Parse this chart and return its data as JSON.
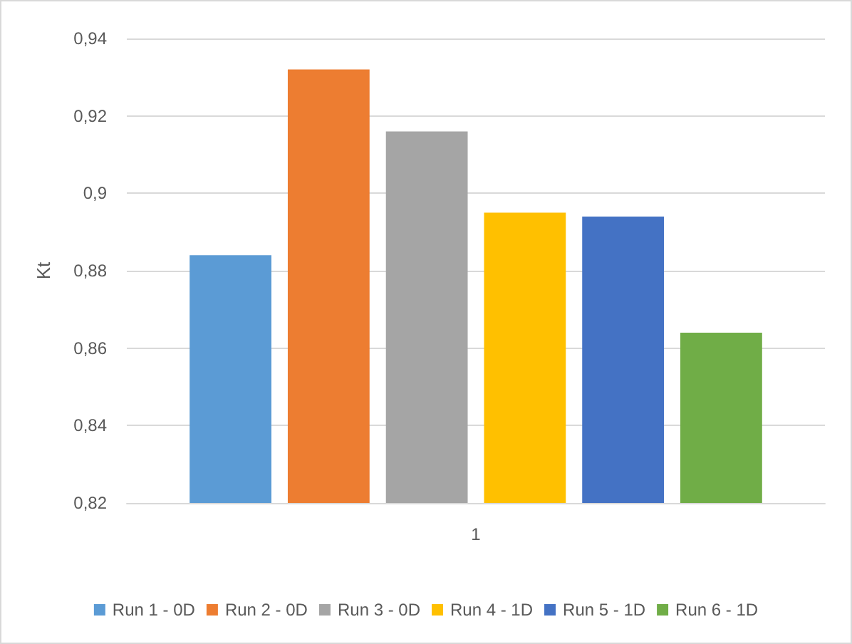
{
  "chart_data": {
    "type": "bar",
    "ylabel": "Kt",
    "categories": [
      "1"
    ],
    "series": [
      {
        "name": "Run 1 - 0D",
        "color": "#5b9bd5",
        "values": [
          0.884
        ]
      },
      {
        "name": "Run 2 - 0D",
        "color": "#ed7d31",
        "values": [
          0.932
        ]
      },
      {
        "name": "Run 3 - 0D",
        "color": "#a5a5a5",
        "values": [
          0.916
        ]
      },
      {
        "name": "Run 4 - 1D",
        "color": "#ffc000",
        "values": [
          0.895
        ]
      },
      {
        "name": "Run 5 - 1D",
        "color": "#4472c4",
        "values": [
          0.894
        ]
      },
      {
        "name": "Run 6 - 1D",
        "color": "#70ad47",
        "values": [
          0.864
        ]
      }
    ],
    "ylim": [
      0.82,
      0.94
    ],
    "yticks": [
      {
        "value": 0.82,
        "label": "0,82"
      },
      {
        "value": 0.84,
        "label": "0,84"
      },
      {
        "value": 0.86,
        "label": "0,86"
      },
      {
        "value": 0.88,
        "label": "0,88"
      },
      {
        "value": 0.9,
        "label": "0,9"
      },
      {
        "value": 0.92,
        "label": "0,92"
      },
      {
        "value": 0.94,
        "label": "0,94"
      }
    ],
    "grid": "y",
    "legend": "bottom"
  }
}
